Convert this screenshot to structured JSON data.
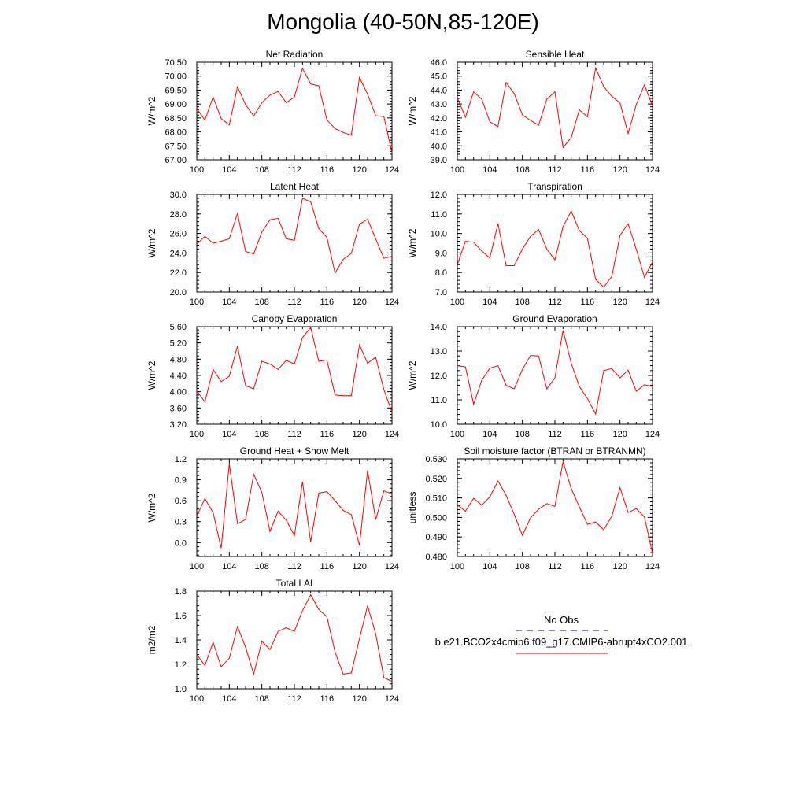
{
  "title": "Mongolia (40-50N,85-120E)",
  "colors": {
    "model_line": "#ff0000",
    "obs_line": "#0000a0",
    "axis": "#000000"
  },
  "legend": {
    "obs_label": "No Obs",
    "model_label": "b.e21.BCO2x4cmip6.f09_g17.CMIP6-abrupt4xCO2.001"
  },
  "chart_data": [
    {
      "type": "line",
      "title": "Net Radiation",
      "ylabel": "W/m^2",
      "xlim": [
        100,
        124
      ],
      "ylim": [
        67.0,
        70.5
      ],
      "xticks": [
        100,
        104,
        108,
        112,
        116,
        120,
        124
      ],
      "yticks": [
        "67.00",
        "67.50",
        "68.00",
        "68.50",
        "69.00",
        "69.50",
        "70.00",
        "70.50"
      ],
      "x": [
        100,
        101,
        102,
        103,
        104,
        105,
        106,
        107,
        108,
        109,
        110,
        111,
        112,
        113,
        114,
        115,
        116,
        117,
        118,
        119,
        120,
        121,
        122,
        123,
        124
      ],
      "values": [
        68.85,
        68.42,
        69.25,
        68.48,
        68.25,
        69.62,
        68.98,
        68.57,
        69.05,
        69.32,
        69.45,
        69.05,
        69.25,
        70.28,
        69.72,
        69.65,
        68.43,
        68.12,
        67.98,
        67.88,
        69.95,
        69.35,
        68.58,
        68.55,
        67.25
      ]
    },
    {
      "type": "line",
      "title": "Sensible Heat",
      "ylabel": "W/m^2",
      "xlim": [
        100,
        124
      ],
      "ylim": [
        39.0,
        46.0
      ],
      "xticks": [
        100,
        104,
        108,
        112,
        116,
        120,
        124
      ],
      "yticks": [
        "39.0",
        "40.0",
        "41.0",
        "42.0",
        "43.0",
        "44.0",
        "45.0",
        "46.0"
      ],
      "x": [
        100,
        101,
        102,
        103,
        104,
        105,
        106,
        107,
        108,
        109,
        110,
        111,
        112,
        113,
        114,
        115,
        116,
        117,
        118,
        119,
        120,
        121,
        122,
        123,
        124
      ],
      "values": [
        43.45,
        42.05,
        43.88,
        43.35,
        41.72,
        41.38,
        44.55,
        43.75,
        42.22,
        41.82,
        41.48,
        43.35,
        43.88,
        39.88,
        40.58,
        42.58,
        42.08,
        45.58,
        44.25,
        43.55,
        43.08,
        40.88,
        42.95,
        44.38,
        42.85
      ]
    },
    {
      "type": "line",
      "title": "Latent Heat",
      "ylabel": "W/m^2",
      "xlim": [
        100,
        124
      ],
      "ylim": [
        20.0,
        30.0
      ],
      "xticks": [
        100,
        104,
        108,
        112,
        116,
        120,
        124
      ],
      "yticks": [
        "20.0",
        "22.0",
        "24.0",
        "26.0",
        "28.0",
        "30.0"
      ],
      "x": [
        100,
        101,
        102,
        103,
        104,
        105,
        106,
        107,
        108,
        109,
        110,
        111,
        112,
        113,
        114,
        115,
        116,
        117,
        118,
        119,
        120,
        121,
        122,
        123,
        124
      ],
      "values": [
        24.9,
        25.7,
        25.0,
        25.2,
        25.45,
        28.05,
        24.15,
        23.9,
        26.15,
        27.4,
        27.55,
        25.45,
        25.3,
        29.6,
        29.25,
        26.5,
        25.6,
        21.95,
        23.35,
        23.95,
        26.95,
        27.45,
        25.45,
        23.45,
        23.65
      ]
    },
    {
      "type": "line",
      "title": "Transpiration",
      "ylabel": "W/m^2",
      "xlim": [
        100,
        124
      ],
      "ylim": [
        7.0,
        12.0
      ],
      "xticks": [
        100,
        104,
        108,
        112,
        116,
        120,
        124
      ],
      "yticks": [
        "7.0",
        "8.0",
        "9.0",
        "10.0",
        "11.0",
        "12.0"
      ],
      "x": [
        100,
        101,
        102,
        103,
        104,
        105,
        106,
        107,
        108,
        109,
        110,
        111,
        112,
        113,
        114,
        115,
        116,
        117,
        118,
        119,
        120,
        121,
        122,
        123,
        124
      ],
      "values": [
        8.4,
        9.6,
        9.55,
        9.1,
        8.75,
        10.5,
        8.35,
        8.35,
        9.2,
        9.85,
        10.2,
        9.2,
        8.65,
        10.35,
        11.15,
        10.15,
        9.75,
        7.65,
        7.25,
        7.8,
        9.9,
        10.5,
        9.2,
        7.75,
        8.55
      ]
    },
    {
      "type": "line",
      "title": "Canopy Evaporation",
      "ylabel": "W/m^2",
      "xlim": [
        100,
        124
      ],
      "ylim": [
        3.2,
        5.6
      ],
      "xticks": [
        100,
        104,
        108,
        112,
        116,
        120,
        124
      ],
      "yticks": [
        "3.20",
        "3.60",
        "4.00",
        "4.40",
        "4.80",
        "5.20",
        "5.60"
      ],
      "x": [
        100,
        101,
        102,
        103,
        104,
        105,
        106,
        107,
        108,
        109,
        110,
        111,
        112,
        113,
        114,
        115,
        116,
        117,
        118,
        119,
        120,
        121,
        122,
        123,
        124
      ],
      "values": [
        4.02,
        3.75,
        4.55,
        4.25,
        4.38,
        5.12,
        4.15,
        4.07,
        4.75,
        4.68,
        4.55,
        4.77,
        4.68,
        5.33,
        5.58,
        4.75,
        4.78,
        3.92,
        3.9,
        3.9,
        5.15,
        4.7,
        4.85,
        4.05,
        3.5
      ]
    },
    {
      "type": "line",
      "title": "Ground Evaporation",
      "ylabel": "W/m^2",
      "xlim": [
        100,
        124
      ],
      "ylim": [
        10.0,
        14.0
      ],
      "xticks": [
        100,
        104,
        108,
        112,
        116,
        120,
        124
      ],
      "yticks": [
        "10.0",
        "11.0",
        "12.0",
        "13.0",
        "14.0"
      ],
      "x": [
        100,
        101,
        102,
        103,
        104,
        105,
        106,
        107,
        108,
        109,
        110,
        111,
        112,
        113,
        114,
        115,
        116,
        117,
        118,
        119,
        120,
        121,
        122,
        123,
        124
      ],
      "values": [
        12.4,
        12.35,
        10.82,
        11.8,
        12.3,
        12.4,
        11.6,
        11.45,
        12.25,
        12.82,
        12.8,
        11.45,
        11.9,
        13.85,
        12.5,
        11.55,
        11.05,
        10.42,
        12.2,
        12.28,
        11.9,
        12.22,
        11.35,
        11.62,
        11.55
      ]
    },
    {
      "type": "line",
      "title": "Ground Heat + Snow Melt",
      "ylabel": "W/m^2",
      "xlim": [
        100,
        124
      ],
      "ylim": [
        -0.2,
        1.2
      ],
      "xticks": [
        100,
        104,
        108,
        112,
        116,
        120,
        124
      ],
      "yticks": [
        "0.0",
        "0.3",
        "0.6",
        "0.9",
        "1.2"
      ],
      "x": [
        100,
        101,
        102,
        103,
        104,
        105,
        106,
        107,
        108,
        109,
        110,
        111,
        112,
        113,
        114,
        115,
        116,
        117,
        118,
        119,
        120,
        121,
        122,
        123,
        124
      ],
      "values": [
        0.38,
        0.63,
        0.43,
        -0.08,
        1.13,
        0.27,
        0.33,
        0.98,
        0.72,
        0.16,
        0.45,
        0.32,
        0.1,
        0.87,
        0.01,
        0.71,
        0.73,
        0.6,
        0.46,
        0.4,
        -0.04,
        1.03,
        0.33,
        0.74,
        0.7
      ]
    },
    {
      "type": "line",
      "title": "Soil moisture factor (BTRAN or BTRANMN)",
      "ylabel": "unitless",
      "xlim": [
        100,
        124
      ],
      "ylim": [
        0.48,
        0.53
      ],
      "xticks": [
        100,
        104,
        108,
        112,
        116,
        120,
        124
      ],
      "yticks": [
        "0.480",
        "0.490",
        "0.500",
        "0.510",
        "0.520",
        "0.530"
      ],
      "x": [
        100,
        101,
        102,
        103,
        104,
        105,
        106,
        107,
        108,
        109,
        110,
        111,
        112,
        113,
        114,
        115,
        116,
        117,
        118,
        119,
        120,
        121,
        122,
        123,
        124
      ],
      "values": [
        0.5065,
        0.5032,
        0.5098,
        0.5063,
        0.5105,
        0.5187,
        0.5113,
        0.5016,
        0.4908,
        0.4998,
        0.5042,
        0.5071,
        0.5057,
        0.5286,
        0.5148,
        0.5055,
        0.4965,
        0.4977,
        0.4937,
        0.5006,
        0.5153,
        0.5025,
        0.5045,
        0.5003,
        0.4815
      ]
    },
    {
      "type": "line",
      "title": "Total LAI",
      "ylabel": "m2/m2",
      "xlim": [
        100,
        124
      ],
      "ylim": [
        1.0,
        1.8
      ],
      "xticks": [
        100,
        104,
        108,
        112,
        116,
        120,
        124
      ],
      "yticks": [
        "1.0",
        "1.2",
        "1.4",
        "1.6",
        "1.8"
      ],
      "x": [
        100,
        101,
        102,
        103,
        104,
        105,
        106,
        107,
        108,
        109,
        110,
        111,
        112,
        113,
        114,
        115,
        116,
        117,
        118,
        119,
        120,
        121,
        122,
        123,
        124
      ],
      "values": [
        1.28,
        1.19,
        1.38,
        1.18,
        1.25,
        1.51,
        1.34,
        1.12,
        1.39,
        1.32,
        1.47,
        1.5,
        1.47,
        1.64,
        1.77,
        1.65,
        1.59,
        1.3,
        1.12,
        1.13,
        1.41,
        1.68,
        1.45,
        1.09,
        1.06
      ]
    }
  ]
}
